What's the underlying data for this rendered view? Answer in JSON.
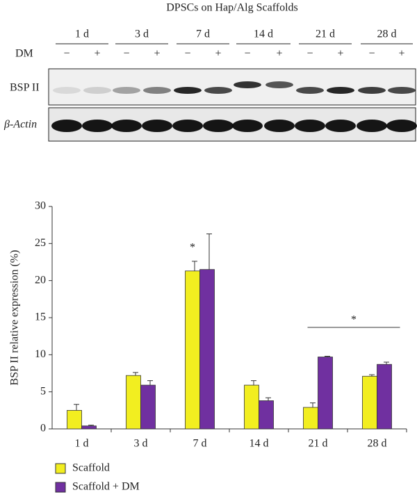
{
  "blot": {
    "title": "DPSCs on Hap/Alg Scaffolds",
    "timepoints": [
      "1 d",
      "3 d",
      "7 d",
      "14 d",
      "21 d",
      "28 d"
    ],
    "treatment_label": "DM",
    "signs": [
      "−",
      "+",
      "−",
      "+",
      "−",
      "+",
      "−",
      "+",
      "−",
      "+",
      "−",
      "+"
    ],
    "rows": [
      "BSP II",
      "β-Actin"
    ]
  },
  "chart_data": {
    "type": "bar",
    "categories": [
      "1 d",
      "3 d",
      "7 d",
      "14 d",
      "21 d",
      "28 d"
    ],
    "ylabel": "BSP II relative expression (%)",
    "ylim": [
      0,
      30
    ],
    "yticks": [
      0,
      5,
      10,
      15,
      20,
      25,
      30
    ],
    "series": [
      {
        "name": "Scaffold",
        "color": "#f2ee20",
        "values": [
          2.5,
          7.2,
          21.3,
          5.9,
          2.9,
          7.1
        ],
        "errors": [
          0.8,
          0.4,
          1.3,
          0.6,
          0.6,
          0.2
        ]
      },
      {
        "name": "Scaffold + DM",
        "color": "#7030a0",
        "values": [
          0.4,
          5.9,
          21.5,
          3.8,
          9.7,
          8.7
        ],
        "errors": [
          0.1,
          0.6,
          4.8,
          0.4,
          0.1,
          0.3
        ]
      }
    ],
    "annotations": [
      "*",
      "*"
    ]
  }
}
